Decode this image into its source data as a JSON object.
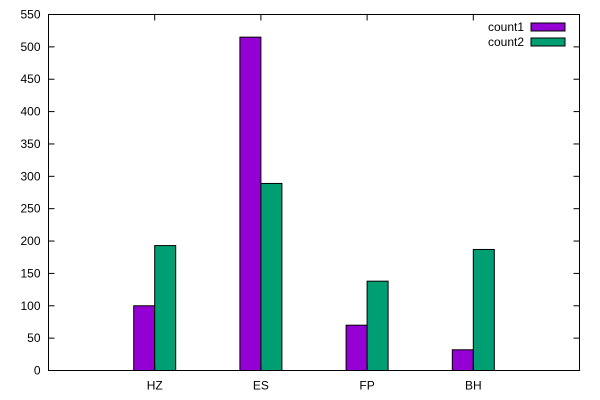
{
  "chart_data": {
    "type": "bar",
    "title": "",
    "xlabel": "",
    "ylabel": "",
    "categories": [
      "HZ",
      "ES",
      "FP",
      "BH"
    ],
    "series": [
      {
        "name": "count1",
        "color": "#9400d3",
        "values": [
          100,
          515,
          70,
          32
        ]
      },
      {
        "name": "count2",
        "color": "#009e73",
        "values": [
          193,
          289,
          138,
          187
        ]
      }
    ],
    "ylim": [
      0,
      550
    ],
    "yticks": [
      0,
      50,
      100,
      150,
      200,
      250,
      300,
      350,
      400,
      450,
      500,
      550
    ],
    "ytick_labels": [
      "0",
      "50",
      "100",
      "150",
      "200",
      "250",
      "300",
      "350",
      "400",
      "450",
      "500",
      "550"
    ],
    "legend_position": "top-right",
    "grid": false
  }
}
